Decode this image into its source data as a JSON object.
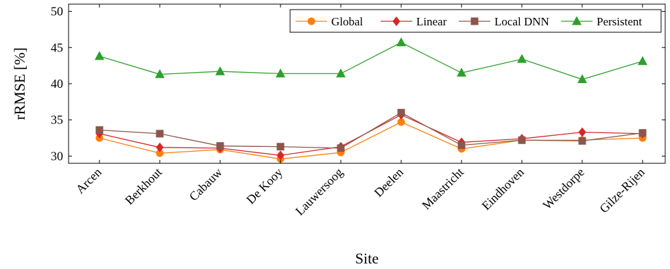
{
  "chart_data": {
    "type": "line",
    "xlabel": "Site",
    "ylabel": "rRMSE [%]",
    "ylim": [
      29,
      51
    ],
    "yticks": [
      30,
      35,
      40,
      45,
      50
    ],
    "grid": false,
    "legend_position": "top-right",
    "categories": [
      "Arcen",
      "Berkhout",
      "Cabauw",
      "De Kooy",
      "Lauwersoog",
      "Deelen",
      "Maastricht",
      "Eindhoven",
      "Westdorpe",
      "Gilze-Rijen"
    ],
    "series": [
      {
        "name": "Global",
        "color": "#ff7f0e",
        "marker": "circle",
        "values": [
          32.5,
          30.4,
          30.9,
          29.6,
          30.5,
          34.7,
          31.0,
          32.2,
          32.2,
          32.5
        ]
      },
      {
        "name": "Linear",
        "color": "#d62728",
        "marker": "diamond",
        "values": [
          33.1,
          31.2,
          31.1,
          30.1,
          31.3,
          35.7,
          31.9,
          32.4,
          33.3,
          33.1
        ]
      },
      {
        "name": "Local DNN",
        "color": "#8c564b",
        "marker": "square",
        "values": [
          33.6,
          33.1,
          31.4,
          31.3,
          31.1,
          36.0,
          31.5,
          32.2,
          32.1,
          33.2
        ]
      },
      {
        "name": "Persistent",
        "color": "#2ca02c",
        "marker": "triangle",
        "values": [
          43.8,
          41.3,
          41.7,
          41.4,
          41.4,
          45.7,
          41.5,
          43.4,
          40.6,
          43.1
        ]
      }
    ]
  }
}
